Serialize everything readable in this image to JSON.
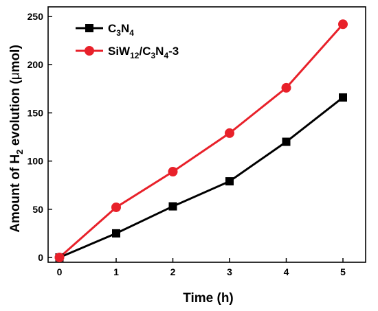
{
  "chart_data": {
    "type": "line",
    "x": [
      0,
      1,
      2,
      3,
      4,
      5
    ],
    "xlabel": "Time (h)",
    "ylabel": "Amount of H2 evolution (μmol)",
    "ylabel_parts": {
      "before": "Amount of H",
      "sub": "2",
      "after": " evolution (",
      "mu": "μ",
      "unit": "mol)"
    },
    "xlim": [
      -0.2,
      5.4
    ],
    "ylim": [
      -5,
      260
    ],
    "xticks": [
      0,
      1,
      2,
      3,
      4,
      5
    ],
    "yticks": [
      0,
      50,
      100,
      150,
      200,
      250
    ],
    "grid": false,
    "legend_position": "top-left",
    "series": [
      {
        "name": "C3N4",
        "name_parts": [
          [
            "C",
            ""
          ],
          [
            "3",
            "sub"
          ],
          [
            "N",
            ""
          ],
          [
            "4",
            "sub"
          ]
        ],
        "values": [
          0,
          25,
          53,
          79,
          120,
          166
        ],
        "color": "#000000",
        "marker": "square"
      },
      {
        "name": "SiW12/C3N4-3",
        "name_parts": [
          [
            "SiW",
            ""
          ],
          [
            "12",
            "sub"
          ],
          [
            "/C",
            ""
          ],
          [
            "3",
            "sub"
          ],
          [
            "N",
            ""
          ],
          [
            "4",
            "sub"
          ],
          [
            "-3",
            ""
          ]
        ],
        "values": [
          0,
          52,
          89,
          129,
          176,
          242
        ],
        "color": "#e8212a",
        "marker": "circle"
      }
    ]
  }
}
